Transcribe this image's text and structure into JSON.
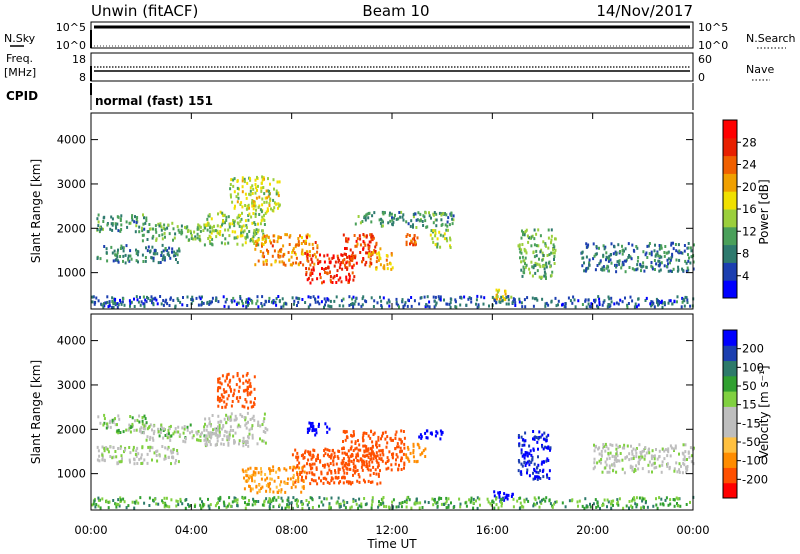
{
  "header": {
    "radar": "Unwin (fitACF)",
    "beam": "Beam 10",
    "date": "14/Nov/2017"
  },
  "top_panels": {
    "noise": {
      "left_label": "N.Sky",
      "left_ticks": [
        "10^5",
        "10^0"
      ],
      "right_ticks": [
        "10^5",
        "10^0"
      ],
      "right_label": "N.Search"
    },
    "freq": {
      "left_label": "Freq.",
      "left_unit": "[MHz]",
      "left_ticks": [
        "18",
        "8"
      ],
      "right_ticks": [
        "60",
        "0"
      ],
      "right_label": "Nave"
    },
    "cpid": {
      "label": "CPID",
      "text": "normal (fast) 151"
    }
  },
  "axes": {
    "ylabel": "Slant Range [km]",
    "xlabel": "Time UT",
    "y_ticks": [
      "1000",
      "2000",
      "3000",
      "4000"
    ],
    "x_ticks": [
      "00:00",
      "04:00",
      "08:00",
      "12:00",
      "16:00",
      "20:00",
      "00:00"
    ]
  },
  "colorbars": {
    "power": {
      "label": "Power [dB]",
      "ticks": [
        "28",
        "24",
        "20",
        "16",
        "12",
        "8",
        "4"
      ],
      "colors": [
        "#0000ff",
        "#1c3fb0",
        "#2e7a6e",
        "#4aa05a",
        "#9bcf3c",
        "#f0e000",
        "#f0a000",
        "#f06000",
        "#e82000",
        "#ff0000"
      ]
    },
    "velocity": {
      "label": "Velocity [m s⁻¹]",
      "ticks": [
        "200",
        "100",
        "50",
        "15",
        "-15",
        "-50",
        "-100",
        "-200"
      ],
      "colors": [
        "#ff0000",
        "#ff5000",
        "#ff8c00",
        "#ffc040",
        "#bebebe",
        "#bebebe",
        "#80d040",
        "#30a030",
        "#2d7a6a",
        "#1c3fb0",
        "#0000ff"
      ]
    }
  },
  "chart_data": [
    {
      "type": "heatmap",
      "panel": "power",
      "x_range_hours": [
        0,
        24
      ],
      "y_range_km": [
        180,
        4600
      ],
      "scatter_regions": [
        {
          "t": [
            0.2,
            3.5
          ],
          "r": [
            1250,
            1650
          ],
          "value_db": 8
        },
        {
          "t": [
            0.2,
            2.2
          ],
          "r": [
            1950,
            2350
          ],
          "value_db": 10
        },
        {
          "t": [
            2.0,
            4.5
          ],
          "r": [
            1750,
            2150
          ],
          "value_db": 12
        },
        {
          "t": [
            4.5,
            7.0
          ],
          "r": [
            1650,
            2400
          ],
          "value_db": 14
        },
        {
          "t": [
            6.5,
            9.0
          ],
          "r": [
            1200,
            1900
          ],
          "value_db": 22
        },
        {
          "t": [
            8.5,
            10.5
          ],
          "r": [
            800,
            1450
          ],
          "value_db": 28
        },
        {
          "t": [
            10.0,
            11.5
          ],
          "r": [
            1200,
            1900
          ],
          "value_db": 26
        },
        {
          "t": [
            11.0,
            12.0
          ],
          "r": [
            1100,
            1500
          ],
          "value_db": 20
        },
        {
          "t": [
            12.5,
            13.0
          ],
          "r": [
            1650,
            1900
          ],
          "value_db": 24
        },
        {
          "t": [
            13.5,
            14.3
          ],
          "r": [
            1550,
            2000
          ],
          "value_db": 14
        },
        {
          "t": [
            10.5,
            14.5
          ],
          "r": [
            2050,
            2400
          ],
          "value_db": 10
        },
        {
          "t": [
            5.5,
            7.5
          ],
          "r": [
            2400,
            3200
          ],
          "value_db": 16
        },
        {
          "t": [
            16.0,
            16.8
          ],
          "r": [
            400,
            650
          ],
          "value_db": 18
        },
        {
          "t": [
            17.0,
            18.5
          ],
          "r": [
            900,
            2000
          ],
          "value_db": 12
        },
        {
          "t": [
            19.5,
            24.0
          ],
          "r": [
            1050,
            1700
          ],
          "value_db": 8
        },
        {
          "t": [
            0.0,
            24.0
          ],
          "r": [
            250,
            500
          ],
          "value_db": 6
        }
      ]
    },
    {
      "type": "heatmap",
      "panel": "velocity",
      "x_range_hours": [
        0,
        24
      ],
      "y_range_km": [
        180,
        4600
      ],
      "scatter_regions": [
        {
          "t": [
            0.2,
            3.5
          ],
          "r": [
            1250,
            1650
          ],
          "value_ms": -10
        },
        {
          "t": [
            0.2,
            2.2
          ],
          "r": [
            1950,
            2350
          ],
          "value_ms": 5
        },
        {
          "t": [
            2.0,
            5.0
          ],
          "r": [
            1750,
            2150
          ],
          "value_ms": 0
        },
        {
          "t": [
            4.5,
            7.0
          ],
          "r": [
            1650,
            2400
          ],
          "value_ms": -10
        },
        {
          "t": [
            6.0,
            8.5
          ],
          "r": [
            600,
            1200
          ],
          "value_ms": -60
        },
        {
          "t": [
            8.0,
            11.5
          ],
          "r": [
            800,
            1600
          ],
          "value_ms": -180
        },
        {
          "t": [
            10.0,
            12.5
          ],
          "r": [
            1100,
            2000
          ],
          "value_ms": -120
        },
        {
          "t": [
            12.5,
            13.3
          ],
          "r": [
            1300,
            1700
          ],
          "value_ms": -80
        },
        {
          "t": [
            13.0,
            14.0
          ],
          "r": [
            1800,
            2000
          ],
          "value_ms": 180
        },
        {
          "t": [
            8.5,
            9.5
          ],
          "r": [
            1900,
            2200
          ],
          "value_ms": 150
        },
        {
          "t": [
            5.0,
            6.5
          ],
          "r": [
            2500,
            3300
          ],
          "value_ms": -150
        },
        {
          "t": [
            16.0,
            16.8
          ],
          "r": [
            400,
            650
          ],
          "value_ms": 150
        },
        {
          "t": [
            17.0,
            18.3
          ],
          "r": [
            900,
            2000
          ],
          "value_ms": 100
        },
        {
          "t": [
            20.0,
            24.0
          ],
          "r": [
            1050,
            1700
          ],
          "value_ms": -10
        },
        {
          "t": [
            0.0,
            24.0
          ],
          "r": [
            250,
            500
          ],
          "value_ms": 20
        }
      ]
    }
  ]
}
